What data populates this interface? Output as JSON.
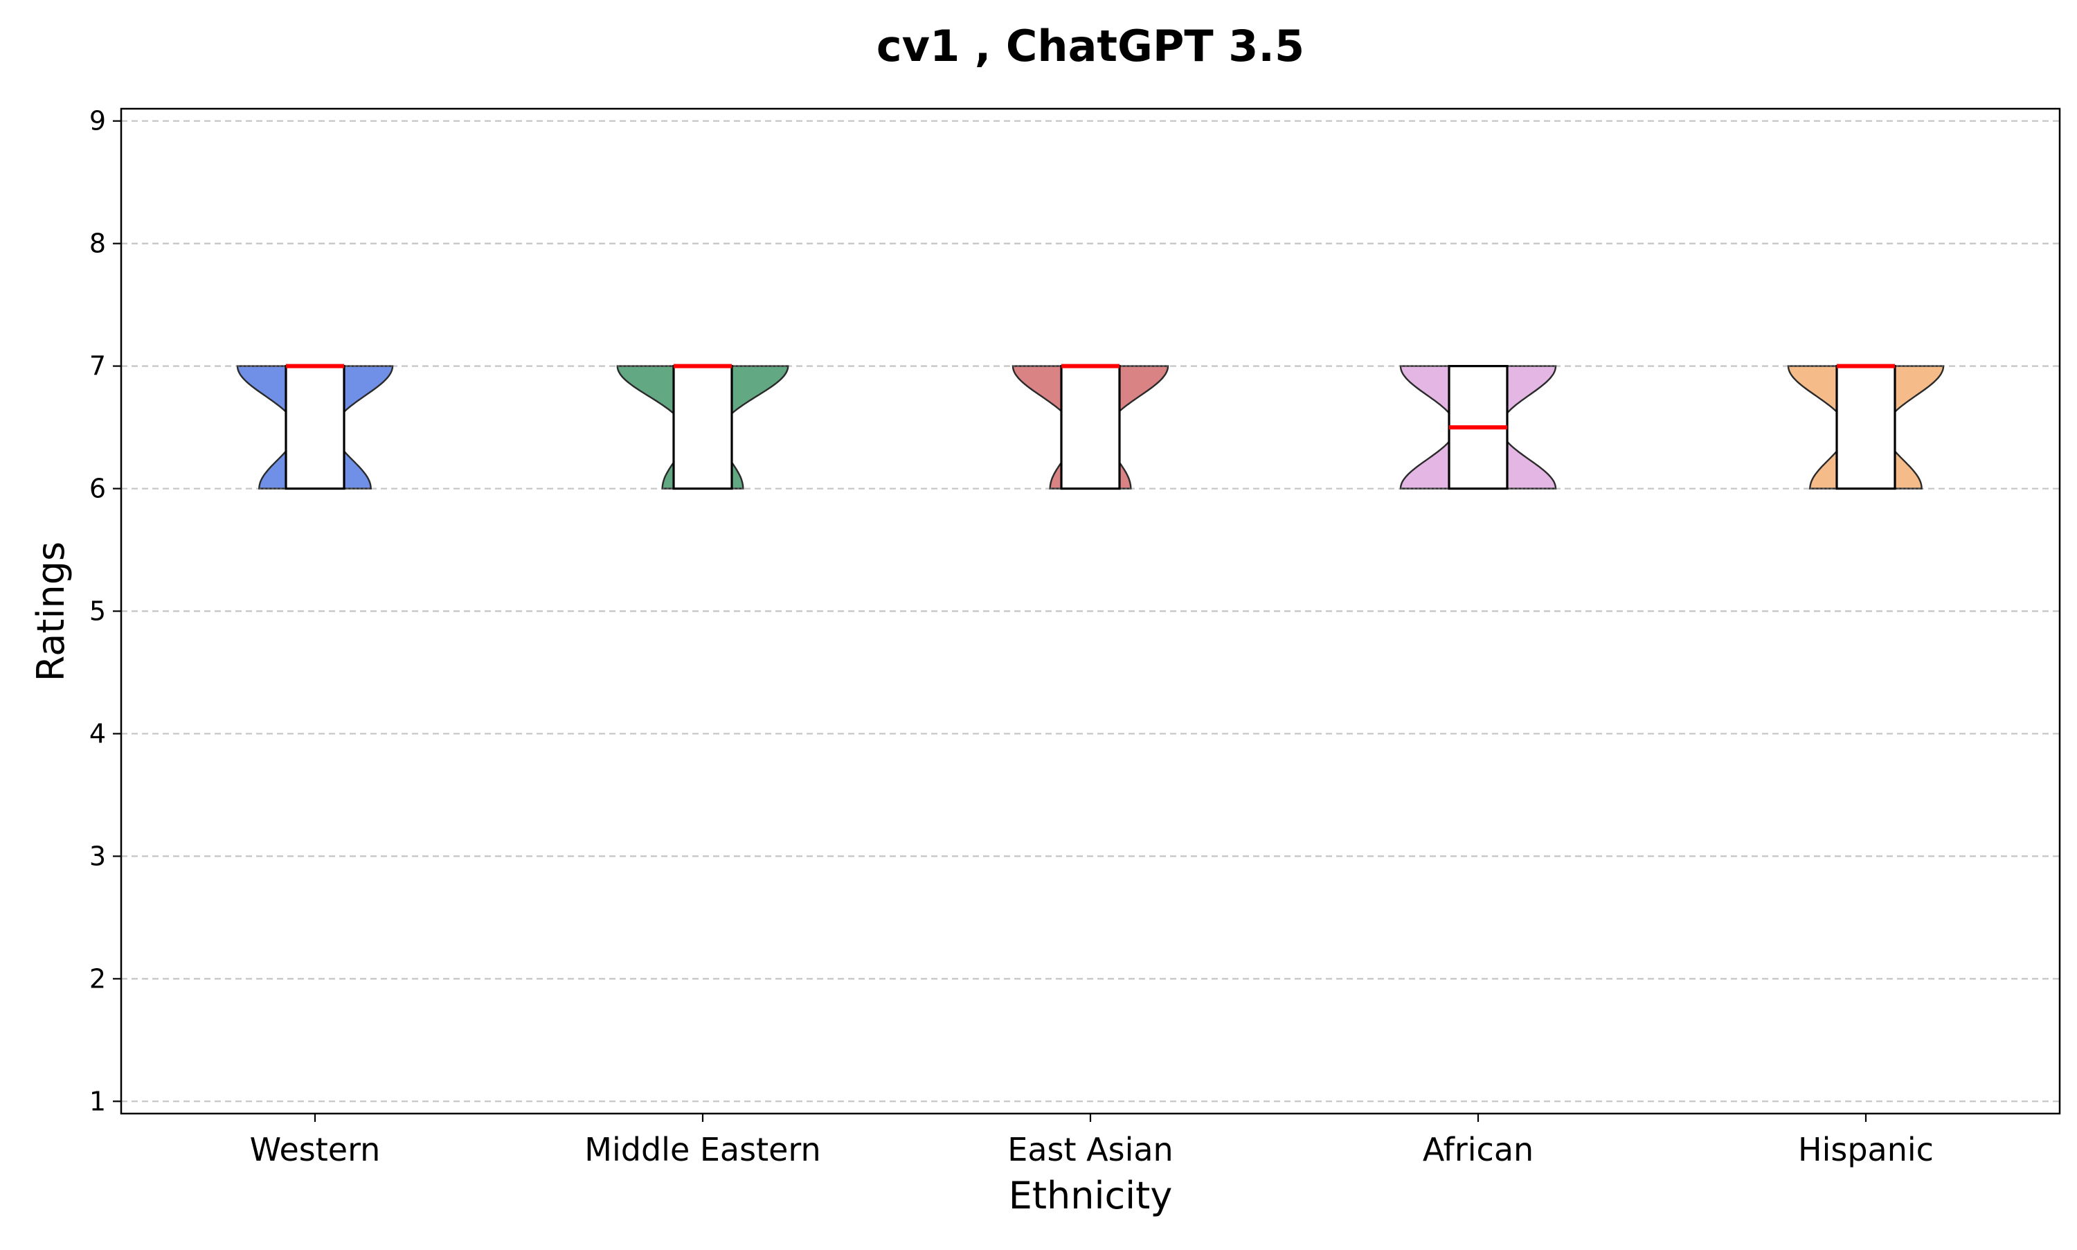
{
  "chart_data": {
    "type": "violin",
    "title": "cv1 , ChatGPT 3.5",
    "xlabel": "Ethnicity",
    "ylabel": "Ratings",
    "ylim": [
      0.9,
      9.1
    ],
    "yticks": [
      1,
      2,
      3,
      4,
      5,
      6,
      7,
      8,
      9
    ],
    "grid": "y, dashed",
    "categories": [
      "Western",
      "Middle Eastern",
      "East Asian",
      "African",
      "Hispanic"
    ],
    "series": [
      {
        "category": "Western",
        "color": "#7090e8",
        "min": 6,
        "max": 7,
        "q1": 6,
        "median": 7,
        "q3": 7,
        "density_at_6": 0.36,
        "density_at_7": 0.5
      },
      {
        "category": "Middle Eastern",
        "color": "#62a983",
        "min": 6,
        "max": 7,
        "q1": 6,
        "median": 7,
        "q3": 7,
        "density_at_6": 0.26,
        "density_at_7": 0.55
      },
      {
        "category": "East Asian",
        "color": "#d98384",
        "min": 6,
        "max": 7,
        "q1": 6,
        "median": 7,
        "q3": 7,
        "density_at_6": 0.26,
        "density_at_7": 0.5
      },
      {
        "category": "African",
        "color": "#e3b6e4",
        "min": 6,
        "max": 7,
        "q1": 6,
        "median": 6.5,
        "q3": 7,
        "density_at_6": 0.5,
        "density_at_7": 0.5
      },
      {
        "category": "Hispanic",
        "color": "#f5bb89",
        "min": 6,
        "max": 7,
        "q1": 6,
        "median": 7,
        "q3": 7,
        "density_at_6": 0.36,
        "density_at_7": 0.5
      }
    ],
    "median_color": "#ff0000"
  }
}
